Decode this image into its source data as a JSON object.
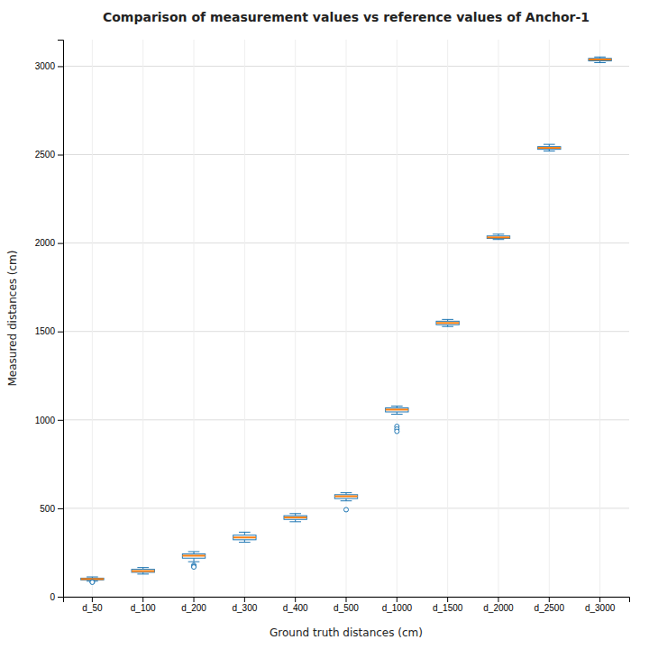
{
  "chart_data": {
    "type": "box",
    "title": "Comparison of measurement values vs reference values of Anchor-1",
    "xlabel": "Ground truth distances (cm)",
    "ylabel": "Measured distances (cm)",
    "categories": [
      "d_50",
      "d_100",
      "d_200",
      "d_300",
      "d_400",
      "d_500",
      "d_1000",
      "d_1500",
      "d_2000",
      "d_2500",
      "d_3000"
    ],
    "boxes": [
      {
        "median": 100,
        "q1": 95,
        "q3": 105,
        "whislo": 88,
        "whishi": 112,
        "fliers": [
          83,
          82
        ]
      },
      {
        "median": 145,
        "q1": 138,
        "q3": 155,
        "whislo": 128,
        "whishi": 165,
        "fliers": []
      },
      {
        "median": 232,
        "q1": 218,
        "q3": 242,
        "whislo": 198,
        "whishi": 255,
        "fliers": [
          178,
          172,
          168
        ]
      },
      {
        "median": 335,
        "q1": 322,
        "q3": 348,
        "whislo": 308,
        "whishi": 365,
        "fliers": []
      },
      {
        "median": 448,
        "q1": 437,
        "q3": 458,
        "whislo": 424,
        "whishi": 470,
        "fliers": []
      },
      {
        "median": 568,
        "q1": 555,
        "q3": 577,
        "whislo": 542,
        "whishi": 588,
        "fliers": [
          492
        ]
      },
      {
        "median": 1058,
        "q1": 1045,
        "q3": 1068,
        "whislo": 1032,
        "whishi": 1078,
        "fliers": [
          963,
          948,
          935
        ]
      },
      {
        "median": 1548,
        "q1": 1538,
        "q3": 1558,
        "whislo": 1528,
        "whishi": 1568,
        "fliers": []
      },
      {
        "median": 2032,
        "q1": 2026,
        "q3": 2040,
        "whislo": 2020,
        "whishi": 2050,
        "fliers": []
      },
      {
        "median": 2538,
        "q1": 2530,
        "q3": 2545,
        "whislo": 2520,
        "whishi": 2558,
        "fliers": []
      },
      {
        "median": 3038,
        "q1": 3030,
        "q3": 3044,
        "whislo": 3020,
        "whishi": 3052,
        "fliers": []
      }
    ],
    "ylim": [
      0,
      3150
    ],
    "yticks": [
      0,
      500,
      1000,
      1500,
      2000,
      2500,
      3000
    ],
    "grid": true
  }
}
